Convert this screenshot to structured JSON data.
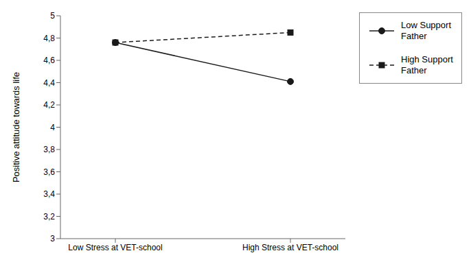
{
  "chart_data": {
    "type": "line",
    "categories": [
      "Low Stress at VET-school",
      "High Stress at VET-school"
    ],
    "series": [
      {
        "name": "Low Support\nFather",
        "color": "#1a1a1a",
        "values": [
          4.76,
          4.41
        ],
        "marker": "circle",
        "line_style": "solid"
      },
      {
        "name": "High Support\nFather",
        "color": "#1a1a1a",
        "values": [
          4.76,
          4.85
        ],
        "marker": "square",
        "line_style": "dashed"
      }
    ],
    "ylabel": "Positive attitude towards life",
    "ylim": [
      3.0,
      5.0
    ],
    "yticks": [
      3,
      {
        "value": 3.2,
        "label": "3,2"
      },
      {
        "value": 3.4,
        "label": "3,4"
      },
      {
        "value": 3.6,
        "label": "3,6"
      },
      {
        "value": 3.8,
        "label": "3,8"
      },
      4,
      {
        "value": 4.2,
        "label": "4,2"
      },
      {
        "value": 4.4,
        "label": "4,4"
      },
      {
        "value": 4.6,
        "label": "4,6"
      },
      {
        "value": 4.8,
        "label": "4,8"
      },
      5
    ],
    "grid": false,
    "legend": "right"
  }
}
